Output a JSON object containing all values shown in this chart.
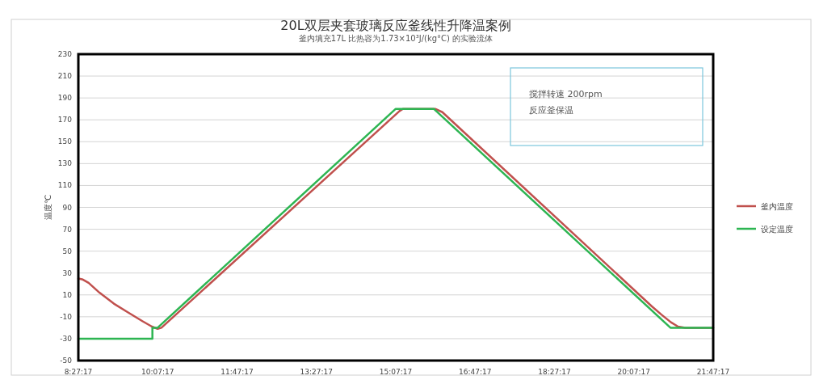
{
  "chart_data": {
    "type": "line",
    "title": "20L双层夹套玻璃反应釜线性升降温案例",
    "subtitle": "釜内填充17L 比热容为1.73×10³J/(kg°C) 的实验流体",
    "ylabel": "温度℃",
    "xlim": [
      8.4547,
      21.7881
    ],
    "xticks": [
      {
        "value": 8.4547,
        "label": "8:27:17"
      },
      {
        "value": 10.1214,
        "label": "10:07:17"
      },
      {
        "value": 11.7881,
        "label": "11:47:17"
      },
      {
        "value": 13.4547,
        "label": "13:27:17"
      },
      {
        "value": 15.1214,
        "label": "15:07:17"
      },
      {
        "value": 16.7881,
        "label": "16:47:17"
      },
      {
        "value": 18.4547,
        "label": "18:27:17"
      },
      {
        "value": 20.1214,
        "label": "20:07:17"
      },
      {
        "value": 21.7881,
        "label": "21:47:17"
      }
    ],
    "ylim": [
      -50,
      230
    ],
    "yticks": [
      -50,
      -30,
      -10,
      10,
      30,
      50,
      70,
      90,
      110,
      130,
      150,
      170,
      190,
      210,
      230
    ],
    "grid": "y",
    "legend": "right",
    "series": [
      {
        "name": "釜内温度",
        "color": "#c0504d",
        "type": "line",
        "x": [
          8.4547,
          8.55,
          8.67,
          8.9,
          9.2,
          9.5,
          9.8,
          10.0,
          10.12,
          10.2,
          15.2,
          15.27,
          15.95,
          16.1,
          20.5,
          20.7,
          20.9,
          21.05,
          21.2,
          21.7881
        ],
        "values": [
          25,
          24,
          21,
          12,
          2,
          -6,
          -14,
          -19,
          -21,
          -20,
          178,
          180,
          180,
          177,
          -0.5,
          -8,
          -15,
          -19,
          -20,
          -20
        ]
      },
      {
        "name": "设定温度",
        "color": "#2db552",
        "type": "line",
        "x": [
          8.4547,
          10.01,
          10.01,
          10.12,
          15.12,
          15.92,
          20.89,
          21.7881
        ],
        "values": [
          -30,
          -30,
          -20,
          -20,
          180,
          180,
          -20,
          -20
        ]
      }
    ],
    "annotations": [
      "搅拌转速 200rpm",
      "反应釜保温"
    ]
  }
}
